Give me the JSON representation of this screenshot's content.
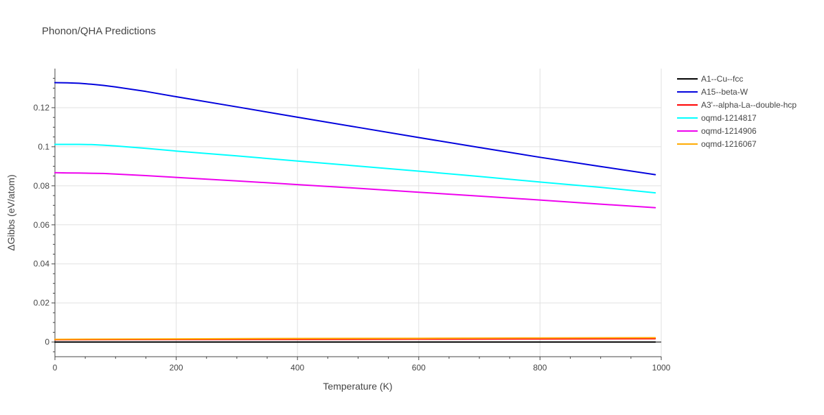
{
  "chart_data": {
    "type": "line",
    "title": "Phonon/QHA Predictions",
    "xlabel": "Temperature (K)",
    "ylabel": "ΔGibbs (eV/atom)",
    "xlim": [
      0,
      1000
    ],
    "ylim": [
      -0.0075,
      0.14
    ],
    "x_ticks": [
      0,
      200,
      400,
      600,
      800,
      1000
    ],
    "x_tick_labels": [
      "0",
      "200",
      "400",
      "600",
      "800",
      "1000"
    ],
    "y_ticks": [
      0,
      0.02,
      0.04,
      0.06,
      0.08,
      0.1,
      0.12
    ],
    "y_tick_labels": [
      "0",
      "0.02",
      "0.04",
      "0.06",
      "0.08",
      "0.1",
      "0.12"
    ],
    "grid": true,
    "legend_position": "right",
    "series": [
      {
        "name": "A1--Cu--fcc",
        "color": "#000000",
        "x": [
          0,
          200,
          400,
          600,
          800,
          990
        ],
        "y": [
          0,
          0,
          0,
          0,
          0,
          0
        ]
      },
      {
        "name": "A15--beta-W",
        "color": "#0000dd",
        "x": [
          0,
          20,
          40,
          60,
          80,
          100,
          150,
          200,
          300,
          400,
          500,
          600,
          700,
          800,
          900,
          990
        ],
        "y": [
          0.1328,
          0.1327,
          0.1325,
          0.132,
          0.1314,
          0.1306,
          0.1283,
          0.1256,
          0.1204,
          0.1151,
          0.1099,
          0.1047,
          0.0996,
          0.0946,
          0.0899,
          0.0857
        ]
      },
      {
        "name": "A3'--alpha-La--double-hcp",
        "color": "#ff0000",
        "x": [
          0,
          200,
          400,
          600,
          800,
          990
        ],
        "y": [
          0.0012,
          0.0013,
          0.0014,
          0.0015,
          0.0016,
          0.0017
        ]
      },
      {
        "name": "oqmd-1214817",
        "color": "#00ffff",
        "x": [
          0,
          20,
          40,
          60,
          80,
          100,
          150,
          200,
          300,
          400,
          500,
          600,
          700,
          800,
          900,
          990
        ],
        "y": [
          0.1012,
          0.1012,
          0.1012,
          0.1011,
          0.1008,
          0.1004,
          0.0992,
          0.0978,
          0.0953,
          0.0927,
          0.0901,
          0.0875,
          0.0848,
          0.0819,
          0.0792,
          0.0764
        ]
      },
      {
        "name": "oqmd-1214906",
        "color": "#ee00ee",
        "x": [
          0,
          20,
          40,
          60,
          80,
          100,
          150,
          200,
          300,
          400,
          500,
          600,
          700,
          800,
          900,
          990
        ],
        "y": [
          0.0867,
          0.0866,
          0.0865,
          0.0864,
          0.0863,
          0.086,
          0.0852,
          0.0843,
          0.0825,
          0.0806,
          0.0787,
          0.0767,
          0.0747,
          0.0727,
          0.0706,
          0.0688
        ]
      },
      {
        "name": "oqmd-1216067",
        "color": "#ffaa00",
        "x": [
          0,
          200,
          400,
          600,
          800,
          990
        ],
        "y": [
          0.0014,
          0.0016,
          0.0018,
          0.0019,
          0.0021,
          0.0022
        ]
      }
    ]
  }
}
